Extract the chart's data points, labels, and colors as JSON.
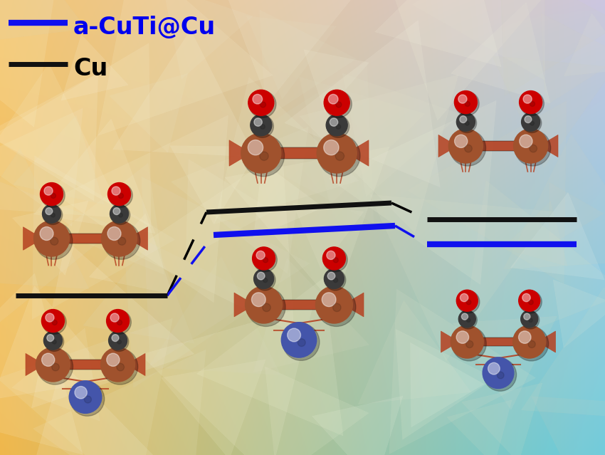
{
  "legend_blue_label": "a-CuTi@Cu",
  "legend_black_label": "Cu",
  "blue_color": "#0000EE",
  "black_color": "#000000",
  "line_color_blue": "#1010EE",
  "line_color_black": "#111111",
  "copper_color": "#A0522D",
  "copper_light": "#CD7F4F",
  "carbon_color": "#3A3A3A",
  "oxygen_color": "#CC0000",
  "ti_color": "#4455AA",
  "ti_light": "#6677CC",
  "rod_color": "#B54020",
  "bg_tl": [
    0.96,
    0.78,
    0.45
  ],
  "bg_tr": [
    0.8,
    0.78,
    0.88
  ],
  "bg_bl": [
    0.94,
    0.72,
    0.3
  ],
  "bg_br": [
    0.4,
    0.8,
    0.88
  ],
  "legend_fontsize": 24,
  "text_fontsize": 22
}
